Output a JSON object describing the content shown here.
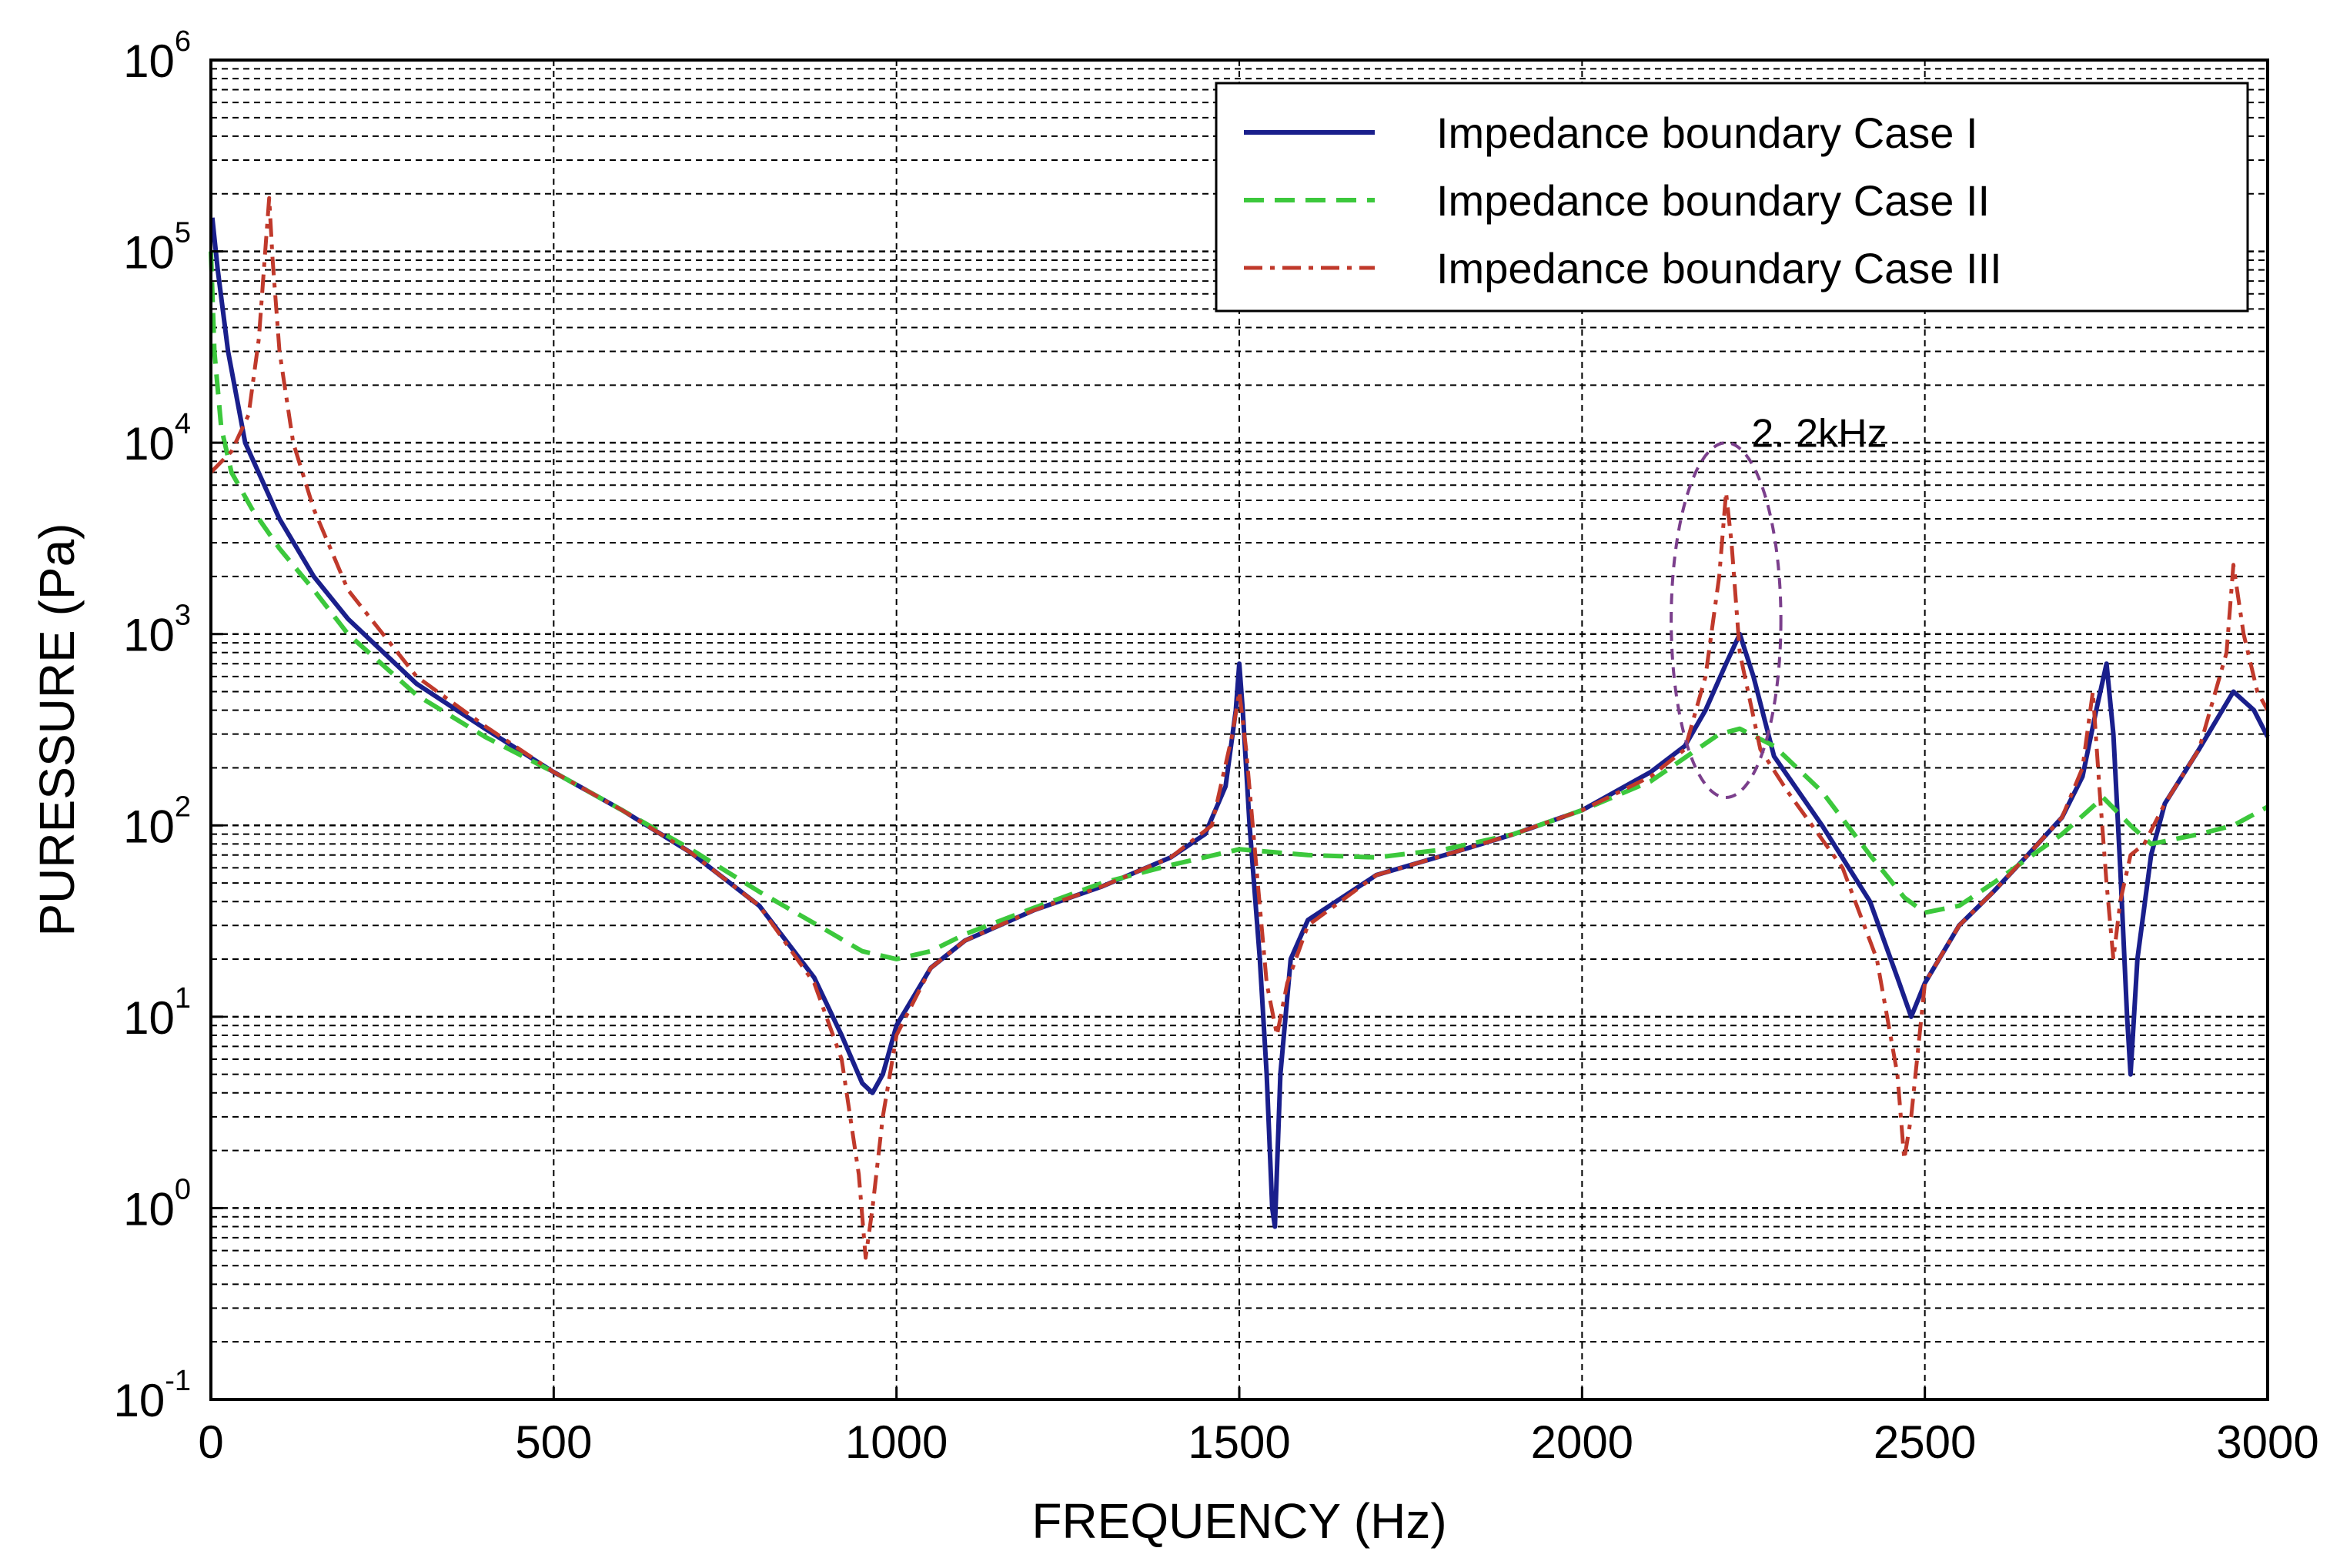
{
  "chart_data": {
    "type": "line",
    "title": "",
    "xlabel": "FREQUENCY (Hz)",
    "ylabel": "PURESSURE (Pa)",
    "xlim": [
      0,
      3000
    ],
    "ylim": [
      0.1,
      1000000
    ],
    "yscale": "log",
    "grid": true,
    "legend_position": "top-right",
    "x_ticks": [
      {
        "value": 0,
        "label": "0"
      },
      {
        "value": 500,
        "label": "500"
      },
      {
        "value": 1000,
        "label": "1000"
      },
      {
        "value": 1500,
        "label": "1500"
      },
      {
        "value": 2000,
        "label": "2000"
      },
      {
        "value": 2500,
        "label": "2500"
      },
      {
        "value": 3000,
        "label": "3000"
      }
    ],
    "y_ticks": [
      {
        "value": 0.1,
        "base": "10",
        "exp": "-1"
      },
      {
        "value": 1,
        "base": "10",
        "exp": "0"
      },
      {
        "value": 10,
        "base": "10",
        "exp": "1"
      },
      {
        "value": 100,
        "base": "10",
        "exp": "2"
      },
      {
        "value": 1000,
        "base": "10",
        "exp": "3"
      },
      {
        "value": 10000,
        "base": "10",
        "exp": "4"
      },
      {
        "value": 100000,
        "base": "10",
        "exp": "5"
      },
      {
        "value": 1000000,
        "base": "10",
        "exp": "6"
      }
    ],
    "annotations": [
      {
        "text": "2. 2kHz",
        "x": 2200,
        "y": 6000,
        "shape": "ellipse",
        "x_range": [
          2130,
          2290
        ],
        "y_range": [
          140,
          10000
        ],
        "color": "#7b3f8c"
      }
    ],
    "series": [
      {
        "name": "Impedance boundary Case I",
        "color": "#1a1f8c",
        "dash": "solid",
        "points": [
          [
            2,
            150000
          ],
          [
            10,
            80000
          ],
          [
            25,
            30000
          ],
          [
            50,
            10000
          ],
          [
            100,
            4000
          ],
          [
            150,
            2000
          ],
          [
            200,
            1200
          ],
          [
            300,
            550
          ],
          [
            400,
            320
          ],
          [
            500,
            190
          ],
          [
            600,
            120
          ],
          [
            700,
            72
          ],
          [
            800,
            38
          ],
          [
            880,
            16
          ],
          [
            920,
            8
          ],
          [
            950,
            4.5
          ],
          [
            965,
            4
          ],
          [
            980,
            5
          ],
          [
            1000,
            9
          ],
          [
            1050,
            18
          ],
          [
            1100,
            25
          ],
          [
            1200,
            36
          ],
          [
            1300,
            48
          ],
          [
            1400,
            68
          ],
          [
            1450,
            90
          ],
          [
            1480,
            160
          ],
          [
            1495,
            400
          ],
          [
            1500,
            700
          ],
          [
            1505,
            400
          ],
          [
            1515,
            100
          ],
          [
            1530,
            20
          ],
          [
            1540,
            5
          ],
          [
            1548,
            1
          ],
          [
            1552,
            0.8
          ],
          [
            1560,
            5
          ],
          [
            1575,
            20
          ],
          [
            1600,
            32
          ],
          [
            1700,
            55
          ],
          [
            1800,
            70
          ],
          [
            1900,
            90
          ],
          [
            2000,
            120
          ],
          [
            2100,
            190
          ],
          [
            2150,
            260
          ],
          [
            2180,
            400
          ],
          [
            2210,
            700
          ],
          [
            2230,
            1000
          ],
          [
            2250,
            600
          ],
          [
            2280,
            230
          ],
          [
            2350,
            100
          ],
          [
            2420,
            40
          ],
          [
            2460,
            16
          ],
          [
            2480,
            10
          ],
          [
            2500,
            15
          ],
          [
            2550,
            30
          ],
          [
            2600,
            45
          ],
          [
            2650,
            70
          ],
          [
            2700,
            110
          ],
          [
            2730,
            180
          ],
          [
            2750,
            400
          ],
          [
            2765,
            700
          ],
          [
            2775,
            300
          ],
          [
            2785,
            60
          ],
          [
            2795,
            10
          ],
          [
            2800,
            5
          ],
          [
            2810,
            20
          ],
          [
            2830,
            70
          ],
          [
            2850,
            130
          ],
          [
            2900,
            250
          ],
          [
            2950,
            500
          ],
          [
            2980,
            400
          ],
          [
            3000,
            290
          ]
        ]
      },
      {
        "name": "Impedance boundary Case II",
        "color": "#3cc83c",
        "dash": "dashed",
        "points": [
          [
            0,
            100000
          ],
          [
            5,
            30000
          ],
          [
            15,
            12000
          ],
          [
            30,
            7000
          ],
          [
            60,
            4500
          ],
          [
            100,
            2800
          ],
          [
            150,
            1700
          ],
          [
            200,
            1000
          ],
          [
            300,
            480
          ],
          [
            400,
            290
          ],
          [
            500,
            190
          ],
          [
            600,
            120
          ],
          [
            700,
            75
          ],
          [
            800,
            45
          ],
          [
            900,
            28
          ],
          [
            950,
            22
          ],
          [
            1000,
            20
          ],
          [
            1050,
            22
          ],
          [
            1100,
            27
          ],
          [
            1200,
            37
          ],
          [
            1300,
            50
          ],
          [
            1400,
            62
          ],
          [
            1500,
            75
          ],
          [
            1600,
            70
          ],
          [
            1700,
            68
          ],
          [
            1800,
            75
          ],
          [
            1900,
            90
          ],
          [
            2000,
            120
          ],
          [
            2100,
            170
          ],
          [
            2200,
            300
          ],
          [
            2230,
            320
          ],
          [
            2280,
            260
          ],
          [
            2350,
            150
          ],
          [
            2420,
            70
          ],
          [
            2470,
            42
          ],
          [
            2500,
            35
          ],
          [
            2550,
            38
          ],
          [
            2600,
            50
          ],
          [
            2700,
            90
          ],
          [
            2760,
            140
          ],
          [
            2800,
            100
          ],
          [
            2830,
            80
          ],
          [
            2900,
            90
          ],
          [
            2950,
            100
          ],
          [
            3000,
            125
          ]
        ]
      },
      {
        "name": "Impedance boundary Case III",
        "color": "#c0392b",
        "dash": "dashdot",
        "points": [
          [
            0,
            7000
          ],
          [
            30,
            9000
          ],
          [
            55,
            14000
          ],
          [
            70,
            35000
          ],
          [
            80,
            110000
          ],
          [
            85,
            190000
          ],
          [
            90,
            90000
          ],
          [
            100,
            30000
          ],
          [
            120,
            10000
          ],
          [
            150,
            4500
          ],
          [
            200,
            1700
          ],
          [
            300,
            600
          ],
          [
            400,
            330
          ],
          [
            500,
            190
          ],
          [
            600,
            120
          ],
          [
            700,
            72
          ],
          [
            800,
            38
          ],
          [
            880,
            15
          ],
          [
            920,
            6
          ],
          [
            945,
            1.5
          ],
          [
            955,
            0.55
          ],
          [
            965,
            1
          ],
          [
            980,
            3
          ],
          [
            1000,
            8
          ],
          [
            1050,
            18
          ],
          [
            1100,
            25
          ],
          [
            1200,
            36
          ],
          [
            1300,
            48
          ],
          [
            1400,
            68
          ],
          [
            1460,
            100
          ],
          [
            1490,
            300
          ],
          [
            1500,
            500
          ],
          [
            1510,
            250
          ],
          [
            1525,
            60
          ],
          [
            1540,
            15
          ],
          [
            1555,
            8
          ],
          [
            1570,
            15
          ],
          [
            1600,
            30
          ],
          [
            1700,
            55
          ],
          [
            1800,
            70
          ],
          [
            1900,
            90
          ],
          [
            2000,
            120
          ],
          [
            2100,
            180
          ],
          [
            2150,
            250
          ],
          [
            2180,
            600
          ],
          [
            2200,
            2000
          ],
          [
            2210,
            5500
          ],
          [
            2218,
            3000
          ],
          [
            2230,
            800
          ],
          [
            2260,
            250
          ],
          [
            2300,
            150
          ],
          [
            2380,
            60
          ],
          [
            2430,
            20
          ],
          [
            2460,
            5
          ],
          [
            2470,
            1.8
          ],
          [
            2480,
            3
          ],
          [
            2500,
            15
          ],
          [
            2550,
            30
          ],
          [
            2600,
            45
          ],
          [
            2650,
            70
          ],
          [
            2700,
            110
          ],
          [
            2730,
            200
          ],
          [
            2745,
            500
          ],
          [
            2755,
            150
          ],
          [
            2765,
            50
          ],
          [
            2775,
            20
          ],
          [
            2785,
            40
          ],
          [
            2800,
            70
          ],
          [
            2820,
            80
          ],
          [
            2850,
            130
          ],
          [
            2900,
            250
          ],
          [
            2940,
            800
          ],
          [
            2950,
            2300
          ],
          [
            2965,
            1000
          ],
          [
            2985,
            500
          ],
          [
            3000,
            400
          ]
        ]
      }
    ]
  }
}
